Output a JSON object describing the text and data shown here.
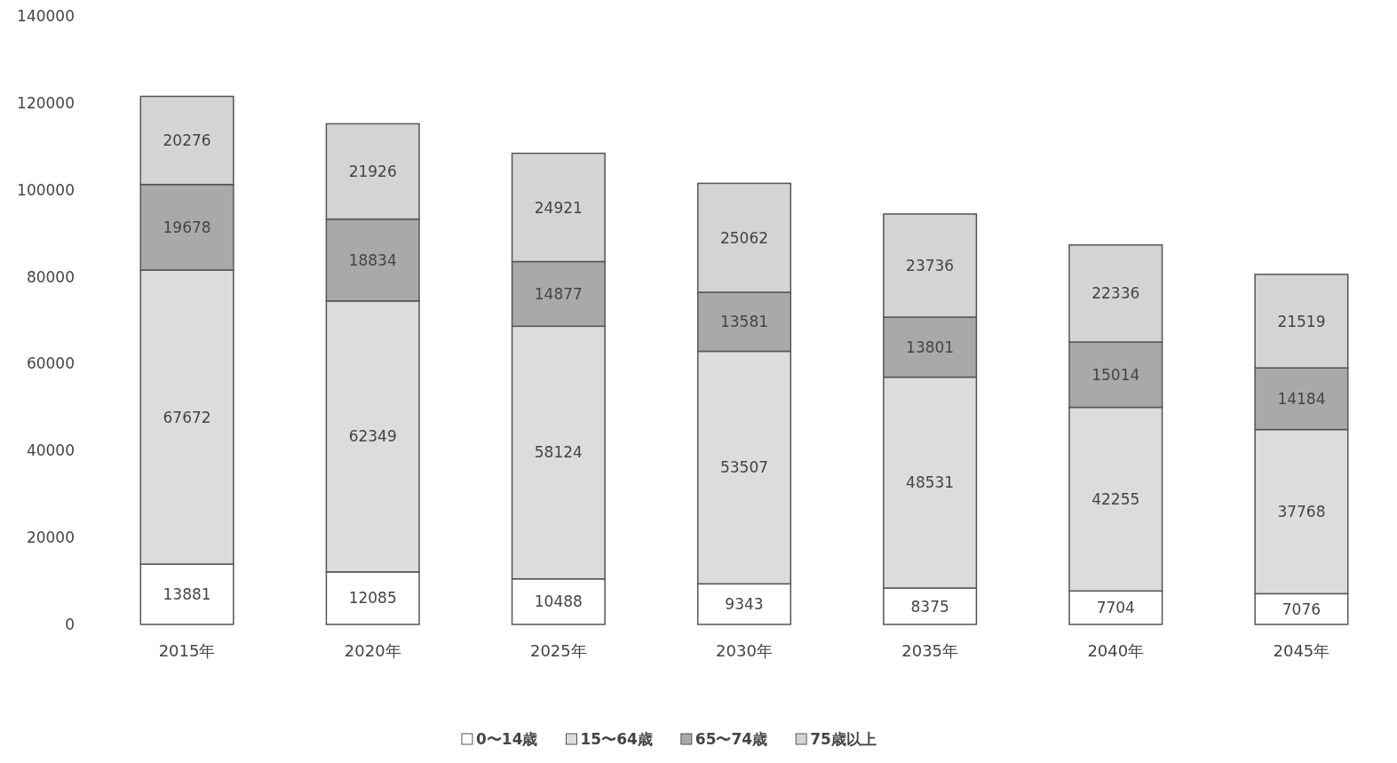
{
  "chart_data": {
    "type": "bar",
    "stacked": true,
    "data_labels": true,
    "legend": "bottom",
    "grid": false,
    "categories": [
      "2015年",
      "2020年",
      "2025年",
      "2030年",
      "2035年",
      "2040年",
      "2045年"
    ],
    "ylim": [
      0,
      140000
    ],
    "yticks": [
      0,
      20000,
      40000,
      60000,
      80000,
      100000,
      120000,
      140000
    ],
    "series": [
      {
        "name": "0〜14歳",
        "color": "#ffffff",
        "values": [
          13881,
          12085,
          10488,
          9343,
          8375,
          7704,
          7076
        ]
      },
      {
        "name": "15〜64歳",
        "color": "#dcdcdc",
        "values": [
          67672,
          62349,
          58124,
          53507,
          48531,
          42255,
          37768
        ]
      },
      {
        "name": "65〜74歳",
        "color": "#a9a9a9",
        "values": [
          19678,
          18834,
          14877,
          13581,
          13801,
          15014,
          14184
        ]
      },
      {
        "name": "75歳以上",
        "color": "#d4d4d4",
        "values": [
          20276,
          21926,
          24921,
          25062,
          23736,
          22336,
          21519
        ]
      }
    ]
  }
}
